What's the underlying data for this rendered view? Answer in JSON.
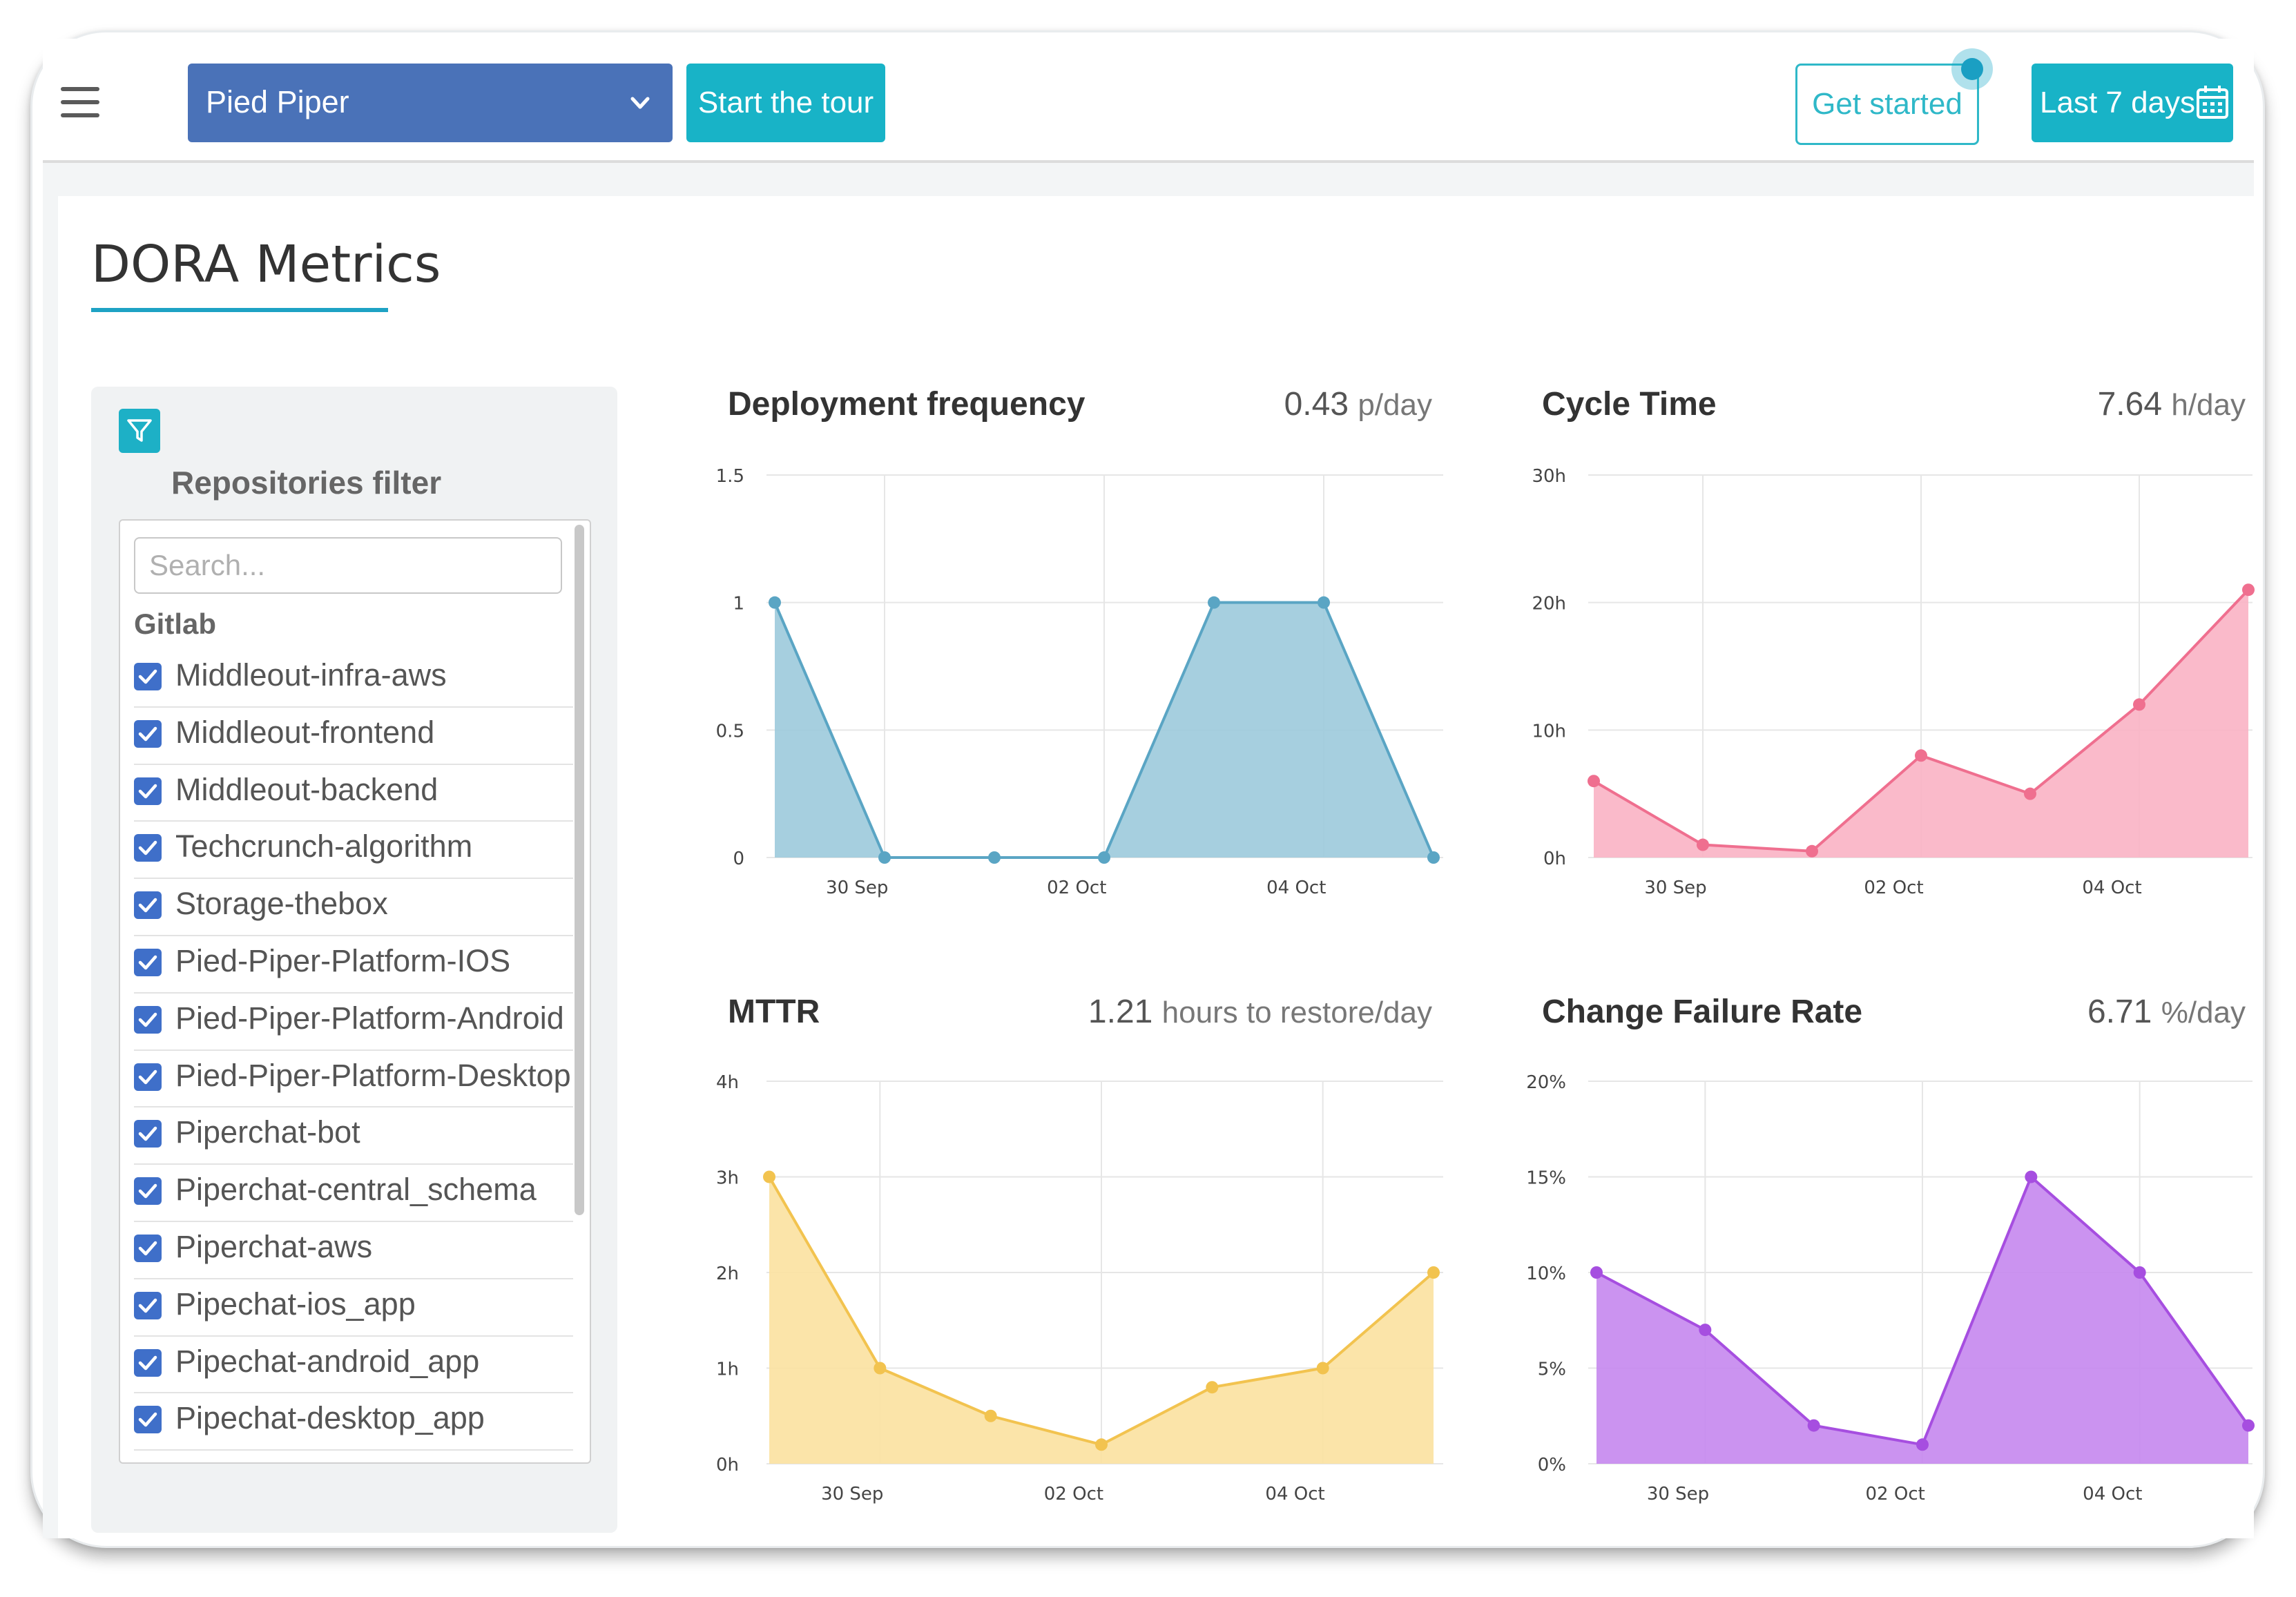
{
  "header": {
    "org_select": "Pied Piper",
    "tour_button": "Start the tour",
    "get_started_button": "Get started",
    "date_range_button": "Last 7 days",
    "accent_color": "#18b3c7",
    "org_select_color": "#4a72b8"
  },
  "page": {
    "title": "DORA Metrics"
  },
  "filter": {
    "title": "Repositories filter",
    "search_placeholder": "Search...",
    "group": "Gitlab",
    "repos": [
      {
        "name": "Middleout-infra-aws",
        "checked": true
      },
      {
        "name": "Middleout-frontend",
        "checked": true
      },
      {
        "name": "Middleout-backend",
        "checked": true
      },
      {
        "name": "Techcrunch-algorithm",
        "checked": true
      },
      {
        "name": "Storage-thebox",
        "checked": true
      },
      {
        "name": "Pied-Piper-Platform-IOS",
        "checked": true
      },
      {
        "name": "Pied-Piper-Platform-Android",
        "checked": true
      },
      {
        "name": "Pied-Piper-Platform-Desktop",
        "checked": true
      },
      {
        "name": "Piperchat-bot",
        "checked": true
      },
      {
        "name": "Piperchat-central_schema",
        "checked": true
      },
      {
        "name": "Piperchat-aws",
        "checked": true
      },
      {
        "name": "Pipechat-ios_app",
        "checked": true
      },
      {
        "name": "Pipechat-android_app",
        "checked": true
      },
      {
        "name": "Pipechat-desktop_app",
        "checked": true
      }
    ]
  },
  "metrics": {
    "deployment": {
      "title": "Deployment frequency",
      "value": "0.43",
      "unit": "p/day"
    },
    "cycle": {
      "title": "Cycle Time",
      "value": "7.64",
      "unit": "h/day"
    },
    "mttr": {
      "title": "MTTR",
      "value": "1.21",
      "unit": "hours to restore/day"
    },
    "cfr": {
      "title": "Change Failure Rate",
      "value": "6.71",
      "unit": "%/day"
    }
  },
  "chart_data": [
    {
      "id": "deployment",
      "type": "area",
      "title": "Deployment frequency",
      "x": [
        "29 Sep",
        "30 Sep",
        "01 Oct",
        "02 Oct",
        "03 Oct",
        "04 Oct",
        "05 Oct"
      ],
      "xticks": [
        "30 Sep",
        "02 Oct",
        "04 Oct"
      ],
      "yticks": [
        "0",
        "0.5",
        "1",
        "1.5"
      ],
      "ylim": [
        0,
        1.5
      ],
      "values": [
        1,
        0,
        0,
        0,
        1,
        1,
        0
      ],
      "color": "#5aa5c4",
      "fill": "#9ccadc",
      "grid": true
    },
    {
      "id": "cycle",
      "type": "area",
      "title": "Cycle Time",
      "x": [
        "29 Sep",
        "30 Sep",
        "01 Oct",
        "02 Oct",
        "03 Oct",
        "04 Oct",
        "05 Oct"
      ],
      "xticks": [
        "30 Sep",
        "02 Oct",
        "04 Oct"
      ],
      "yticks": [
        "0h",
        "10h",
        "20h",
        "30h"
      ],
      "ylim": [
        0,
        30
      ],
      "values": [
        6,
        1,
        0.5,
        8,
        5,
        12,
        21
      ],
      "color": "#ef6f8f",
      "fill": "#f9b3c4",
      "grid": true
    },
    {
      "id": "mttr",
      "type": "area",
      "title": "MTTR",
      "x": [
        "29 Sep",
        "30 Sep",
        "01 Oct",
        "02 Oct",
        "03 Oct",
        "04 Oct",
        "05 Oct"
      ],
      "xticks": [
        "30 Sep",
        "02 Oct",
        "04 Oct"
      ],
      "yticks": [
        "0h",
        "1h",
        "2h",
        "3h",
        "4h"
      ],
      "ylim": [
        0,
        4
      ],
      "values": [
        3,
        1,
        0.5,
        0.2,
        0.8,
        1,
        2
      ],
      "color": "#f2c34f",
      "fill": "#fbe1a0",
      "grid": true
    },
    {
      "id": "cfr",
      "type": "area",
      "title": "Change Failure Rate",
      "x": [
        "29 Sep",
        "30 Sep",
        "01 Oct",
        "02 Oct",
        "03 Oct",
        "04 Oct",
        "05 Oct"
      ],
      "xticks": [
        "30 Sep",
        "02 Oct",
        "04 Oct"
      ],
      "yticks": [
        "0%",
        "5%",
        "10%",
        "15%",
        "20%"
      ],
      "ylim": [
        0,
        20
      ],
      "values": [
        10,
        7,
        2,
        1,
        15,
        10,
        2
      ],
      "color": "#a64ee0",
      "fill": "#c587ee",
      "grid": true
    }
  ]
}
